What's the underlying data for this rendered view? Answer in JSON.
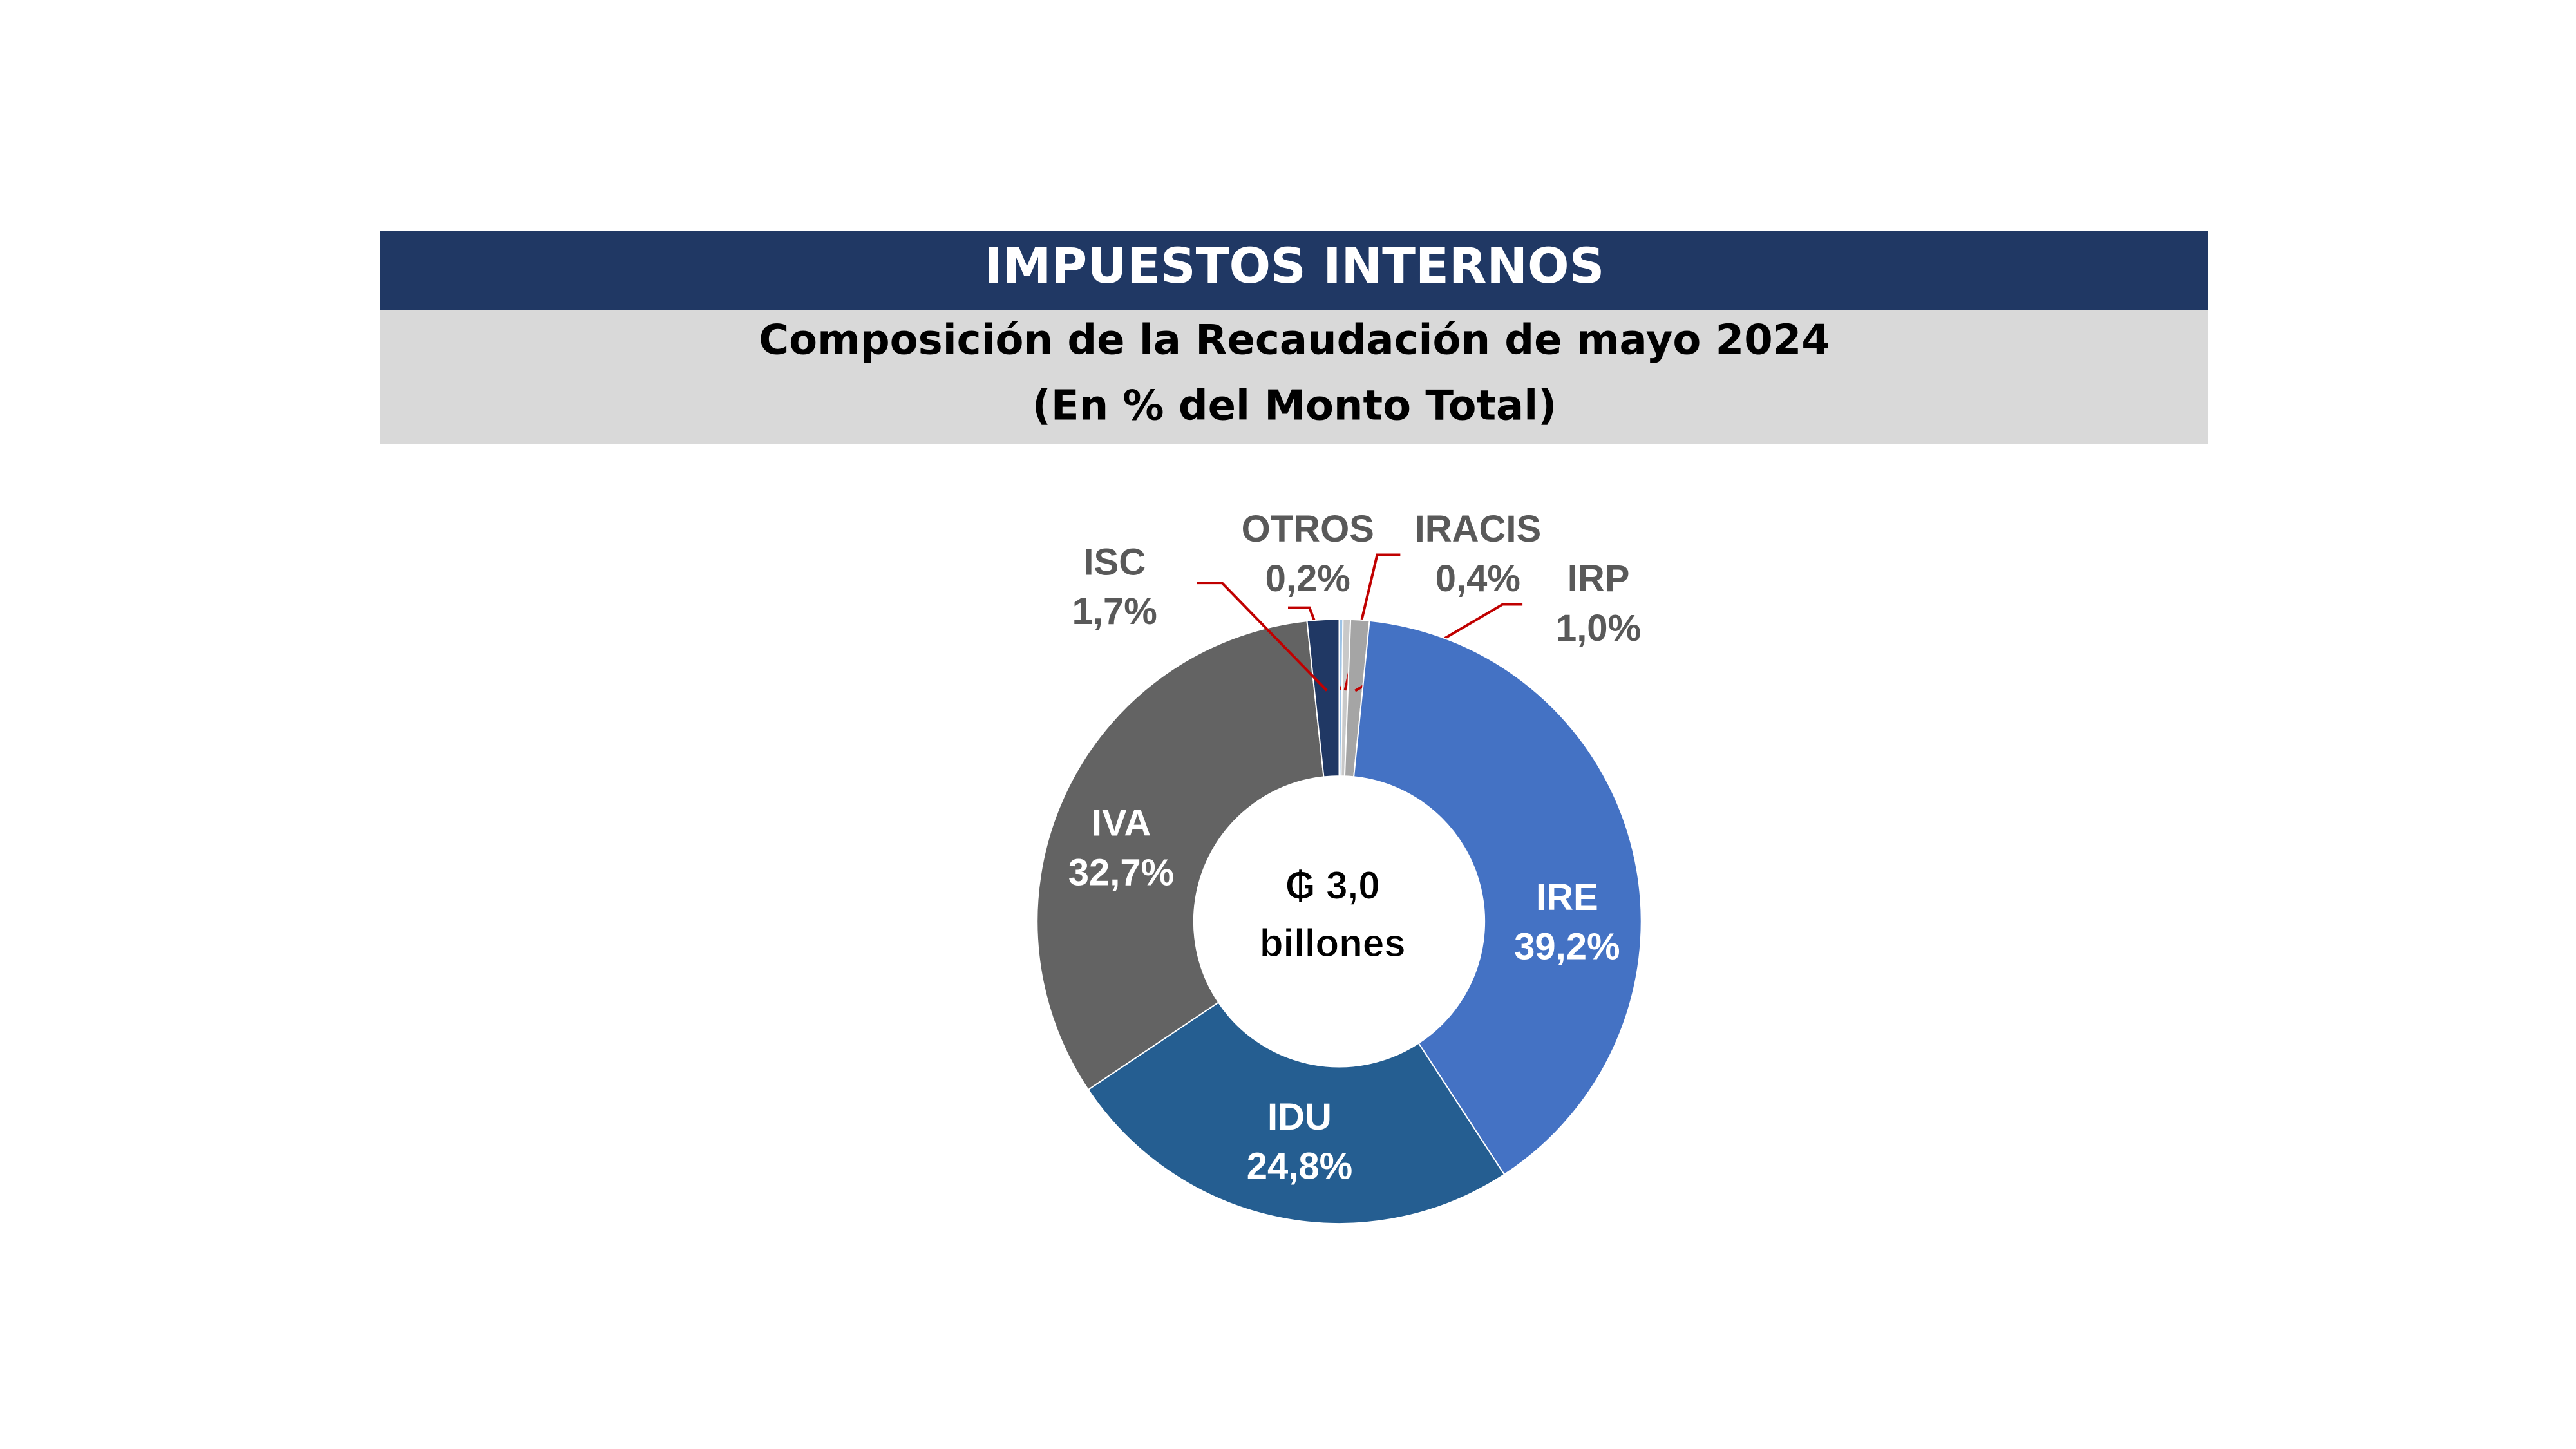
{
  "chart_data": {
    "type": "donut",
    "title": "IMPUESTOS INTERNOS",
    "subtitle": [
      "Composición de la Recaudación de mayo 2024",
      "(En % del Monto Total)"
    ],
    "center_label": [
      "₲ 3,0",
      "billones"
    ],
    "categories": [
      "OTROS",
      "IRACIS",
      "IRP",
      "IRE",
      "IDU",
      "IVA",
      "ISC"
    ],
    "values": [
      0.2,
      0.4,
      1.0,
      39.2,
      24.8,
      32.7,
      1.7
    ],
    "value_labels": [
      "0,2%",
      "0,4%",
      "1,0%",
      "39,2%",
      "24,8%",
      "32,7%",
      "1,7%"
    ],
    "colors": [
      "#9dc3e6",
      "#c9c9c9",
      "#a5a5a5",
      "#4472c4",
      "#255e91",
      "#636363",
      "#203864"
    ],
    "leader_color": "#c00000"
  }
}
